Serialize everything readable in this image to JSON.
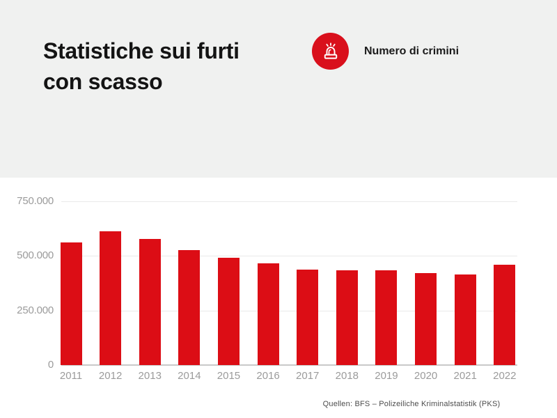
{
  "header": {
    "title_line1": "Statistiche sui furti",
    "title_line2": "con scasso"
  },
  "legend": {
    "icon": "siren-icon",
    "label": "Numero di crimini"
  },
  "chart_data": {
    "type": "bar",
    "title": "Statistiche sui furti con scasso",
    "series_label": "Numero di crimini",
    "categories": [
      "2011",
      "2012",
      "2013",
      "2014",
      "2015",
      "2016",
      "2017",
      "2018",
      "2019",
      "2020",
      "2021",
      "2022"
    ],
    "values": [
      560000,
      612000,
      577000,
      526000,
      489000,
      466000,
      436000,
      432000,
      433000,
      420000,
      414000,
      459000
    ],
    "ylim": [
      0,
      750000
    ],
    "yticks": [
      {
        "value": 750000,
        "label": "750.000"
      },
      {
        "value": 500000,
        "label": "500.000"
      },
      {
        "value": 250000,
        "label": "250.000"
      },
      {
        "value": 0,
        "label": "0"
      }
    ],
    "grid": true,
    "legend_position": "top-right",
    "bar_color": "#dc0d15",
    "source": "Quellen: BFS – Polizeiliche Kriminalstatistik (PKS)"
  },
  "colors": {
    "accent_red": "#dc0d15",
    "legend_badge_red": "#d9101c",
    "header_background": "#f0f1f0",
    "grid_line": "#e9e9e9",
    "axis_line": "#c9c9c9",
    "tick_text": "#9b9b9b",
    "title_text": "#141414",
    "source_text": "#4c4c4c"
  }
}
